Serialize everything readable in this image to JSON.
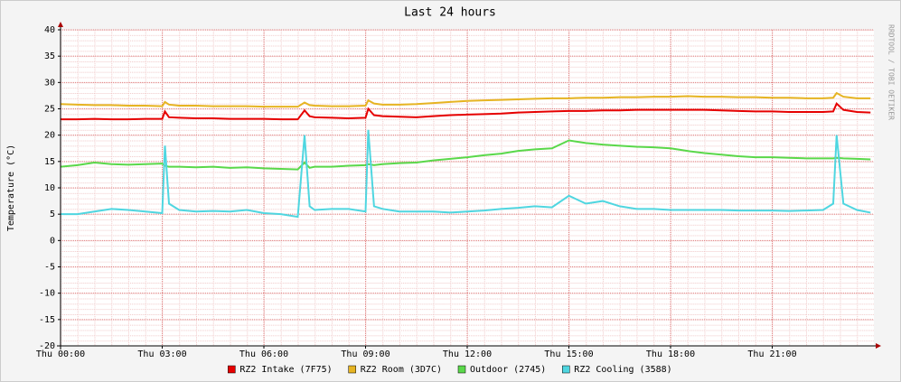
{
  "chart_data": {
    "type": "line",
    "title": "Last 24 hours",
    "y_label": "Temperature (°C)",
    "watermark": "RRDTOOL / TOBI OETIKER",
    "x": [
      0,
      0.5,
      1,
      1.5,
      2,
      2.5,
      3,
      3.08,
      3.2,
      3.5,
      4,
      4.5,
      5,
      5.5,
      6,
      6.5,
      7,
      7.2,
      7.35,
      7.5,
      8,
      8.5,
      9,
      9.08,
      9.25,
      9.5,
      10,
      10.5,
      11,
      11.5,
      12,
      12.5,
      13,
      13.5,
      14,
      14.5,
      15,
      15.5,
      16,
      16.5,
      17,
      17.5,
      18,
      18.5,
      19,
      19.5,
      20,
      20.5,
      21,
      21.5,
      22,
      22.5,
      22.8,
      22.9,
      23.1,
      23.5,
      23.9
    ],
    "xlim": [
      0,
      24
    ],
    "xticks": [
      {
        "value": 0,
        "label": "Thu 00:00"
      },
      {
        "value": 3,
        "label": "Thu 03:00"
      },
      {
        "value": 6,
        "label": "Thu 06:00"
      },
      {
        "value": 9,
        "label": "Thu 09:00"
      },
      {
        "value": 12,
        "label": "Thu 12:00"
      },
      {
        "value": 15,
        "label": "Thu 15:00"
      },
      {
        "value": 18,
        "label": "Thu 18:00"
      },
      {
        "value": 21,
        "label": "Thu 21:00"
      }
    ],
    "ylim": [
      -20,
      40
    ],
    "yticks": [
      -20,
      -15,
      -10,
      -5,
      0,
      5,
      10,
      15,
      20,
      25,
      30,
      35,
      40
    ],
    "grid": true,
    "series": [
      {
        "name": "RZ2 Intake (7F75)",
        "color": "#e60000",
        "values": [
          23,
          23,
          23.1,
          23,
          23,
          23.1,
          23.1,
          24.5,
          23.4,
          23.3,
          23.2,
          23.2,
          23.1,
          23.1,
          23.1,
          23,
          23,
          24.7,
          23.6,
          23.4,
          23.3,
          23.2,
          23.3,
          25,
          23.8,
          23.6,
          23.5,
          23.4,
          23.6,
          23.8,
          23.9,
          24,
          24.1,
          24.3,
          24.4,
          24.5,
          24.6,
          24.6,
          24.7,
          24.7,
          24.8,
          24.8,
          24.8,
          24.8,
          24.8,
          24.7,
          24.6,
          24.5,
          24.5,
          24.4,
          24.4,
          24.4,
          24.5,
          26,
          24.8,
          24.4,
          24.3
        ]
      },
      {
        "name": "RZ2 Room (3D7C)",
        "color": "#e6b422",
        "values": [
          25.9,
          25.8,
          25.7,
          25.7,
          25.6,
          25.6,
          25.5,
          26.3,
          25.8,
          25.6,
          25.6,
          25.5,
          25.5,
          25.5,
          25.4,
          25.4,
          25.4,
          26.2,
          25.7,
          25.6,
          25.5,
          25.5,
          25.6,
          26.6,
          26,
          25.8,
          25.8,
          25.9,
          26.1,
          26.3,
          26.5,
          26.6,
          26.7,
          26.8,
          26.9,
          27,
          27,
          27.1,
          27.1,
          27.2,
          27.2,
          27.3,
          27.3,
          27.4,
          27.3,
          27.3,
          27.2,
          27.2,
          27.1,
          27.1,
          27,
          27,
          27.1,
          28,
          27.3,
          27,
          27
        ]
      },
      {
        "name": "Outdoor (2745)",
        "color": "#5ad84a",
        "values": [
          14,
          14.3,
          14.8,
          14.5,
          14.4,
          14.5,
          14.6,
          14.2,
          14,
          14,
          13.9,
          14,
          13.8,
          13.9,
          13.7,
          13.6,
          13.5,
          14.8,
          13.8,
          14,
          14,
          14.2,
          14.3,
          14.5,
          14.3,
          14.5,
          14.7,
          14.8,
          15.2,
          15.5,
          15.8,
          16.2,
          16.5,
          17,
          17.3,
          17.5,
          19,
          18.5,
          18.2,
          18,
          17.8,
          17.7,
          17.5,
          17,
          16.6,
          16.3,
          16,
          15.8,
          15.8,
          15.7,
          15.6,
          15.6,
          15.6,
          15.7,
          15.6,
          15.5,
          15.4
        ]
      },
      {
        "name": "RZ2 Cooling (3588)",
        "color": "#4fd6e0",
        "values": [
          5,
          5,
          5.5,
          6,
          5.8,
          5.5,
          5.2,
          18,
          7,
          5.8,
          5.5,
          5.6,
          5.5,
          5.8,
          5.2,
          5,
          4.5,
          20,
          6.5,
          5.8,
          6,
          6,
          5.5,
          21,
          6.5,
          6,
          5.5,
          5.5,
          5.5,
          5.3,
          5.5,
          5.7,
          6,
          6.2,
          6.5,
          6.3,
          8.5,
          7,
          7.5,
          6.5,
          6,
          6,
          5.8,
          5.8,
          5.8,
          5.8,
          5.7,
          5.7,
          5.7,
          5.6,
          5.7,
          5.8,
          7,
          20,
          7,
          5.8,
          5.3
        ]
      }
    ]
  }
}
